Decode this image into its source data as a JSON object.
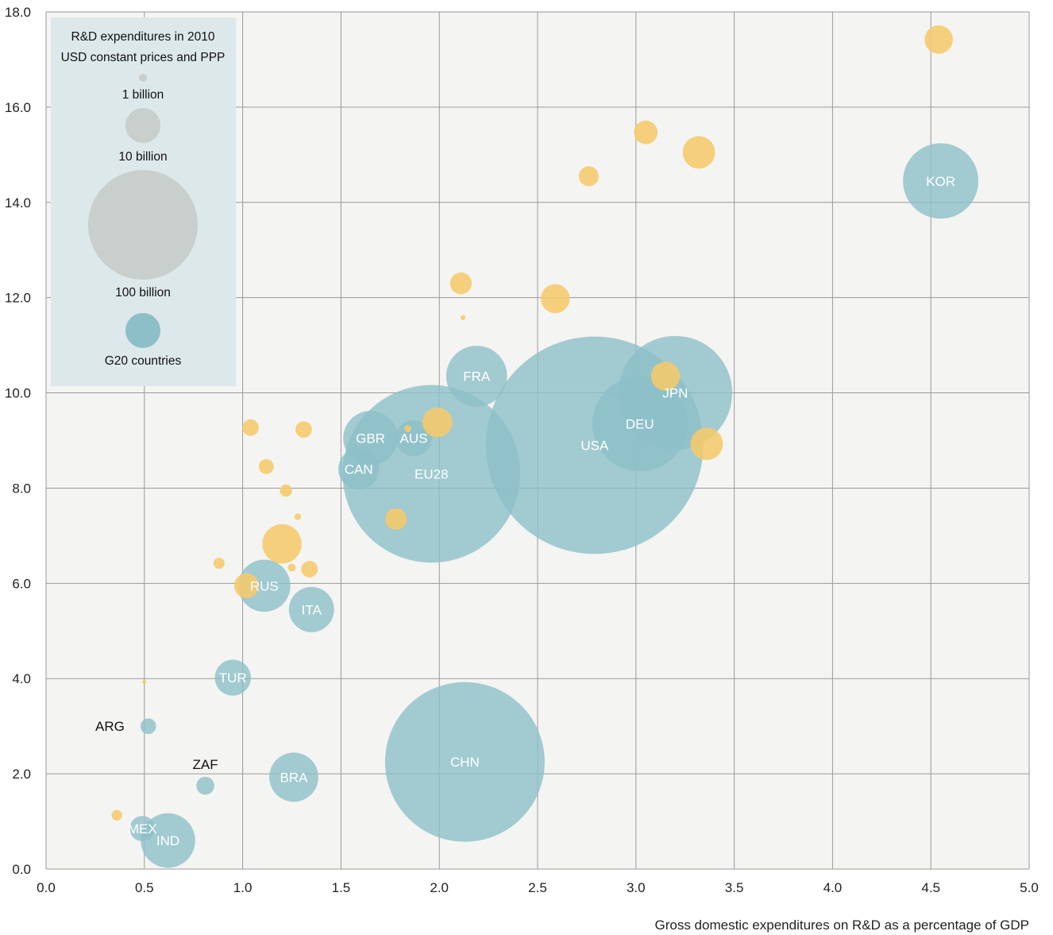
{
  "colors": {
    "plot_background": "#f4f4f2",
    "grid": "#9a9a9a",
    "g20": "#8dbfc8",
    "other": "#f5c96a",
    "legend_background": "#dde8ea",
    "legend_bubble": "#c8cfcd",
    "label_on_bubble": "#ffffff",
    "label_outside": "#111111"
  },
  "chart_data": {
    "type": "scatter",
    "subtype": "bubble",
    "xlabel": "Gross domestic expenditures on R&D as a percentage of GDP",
    "ylabel": "",
    "xlim": [
      0,
      5
    ],
    "ylim": [
      0,
      18
    ],
    "x_ticks": [
      "0.0",
      "0.5",
      "1.0",
      "1.5",
      "2.0",
      "2.5",
      "3.0",
      "3.5",
      "4.0",
      "4.5",
      "5.0"
    ],
    "y_ticks": [
      "0.0",
      "2.0",
      "4.0",
      "6.0",
      "8.0",
      "10.0",
      "12.0",
      "14.0",
      "16.0",
      "18.0"
    ],
    "grid": true,
    "legend": {
      "position": "top-left",
      "title_line1": "R&D expenditures in 2010",
      "title_line2": "USD constant prices and PPP",
      "size_entries": [
        {
          "label": "1 billion",
          "value": 1
        },
        {
          "label": "10 billion",
          "value": 10
        },
        {
          "label": "100 billion",
          "value": 100
        }
      ],
      "color_entry": {
        "label": "G20 countries"
      }
    },
    "series": [
      {
        "name": "G20 countries",
        "points": [
          {
            "label": "USA",
            "x": 2.79,
            "y": 8.9,
            "size": 382,
            "label_inside": true
          },
          {
            "label": "CHN",
            "x": 2.13,
            "y": 2.25,
            "size": 206,
            "label_inside": true
          },
          {
            "label": "EU28",
            "x": 1.96,
            "y": 8.3,
            "size": 255,
            "label_inside": true
          },
          {
            "label": "JPN",
            "x": 3.2,
            "y": 10.0,
            "size": 105,
            "label_inside": true
          },
          {
            "label": "DEU",
            "x": 3.02,
            "y": 9.35,
            "size": 73,
            "label_inside": true
          },
          {
            "label": "KOR",
            "x": 4.55,
            "y": 14.45,
            "size": 46,
            "label_inside": true
          },
          {
            "label": "FRA",
            "x": 2.19,
            "y": 10.35,
            "size": 30,
            "label_inside": true
          },
          {
            "label": "GBR",
            "x": 1.65,
            "y": 9.05,
            "size": 24,
            "label_inside": true
          },
          {
            "label": "RUS",
            "x": 1.11,
            "y": 5.95,
            "size": 22,
            "label_inside": true
          },
          {
            "label": "BRA",
            "x": 1.26,
            "y": 1.93,
            "size": 19.5,
            "label_inside": true
          },
          {
            "label": "IND",
            "x": 0.62,
            "y": 0.6,
            "size": 24,
            "label_inside": true
          },
          {
            "label": "ITA",
            "x": 1.35,
            "y": 5.45,
            "size": 16.5,
            "label_inside": true
          },
          {
            "label": "CAN",
            "x": 1.59,
            "y": 8.4,
            "size": 13.5,
            "label_inside": true
          },
          {
            "label": "AUS",
            "x": 1.87,
            "y": 9.05,
            "size": 10.5,
            "label_inside": true
          },
          {
            "label": "TUR",
            "x": 0.95,
            "y": 4.02,
            "size": 10.5,
            "label_inside": true
          },
          {
            "label": "MEX",
            "x": 0.49,
            "y": 0.85,
            "size": 5.2,
            "label_inside": true
          },
          {
            "label": "ZAF",
            "x": 0.81,
            "y": 1.75,
            "size": 2.6,
            "label_inside": false
          },
          {
            "label": "ARG",
            "x": 0.52,
            "y": 3.0,
            "size": 2.0,
            "label_inside": false
          }
        ]
      },
      {
        "name": "",
        "points": [
          {
            "x": 4.54,
            "y": 17.42,
            "size": 6.5
          },
          {
            "x": 3.05,
            "y": 15.47,
            "size": 4.5
          },
          {
            "x": 3.32,
            "y": 15.05,
            "size": 8.5
          },
          {
            "x": 2.76,
            "y": 14.55,
            "size": 3.2
          },
          {
            "x": 2.11,
            "y": 12.3,
            "size": 3.8
          },
          {
            "x": 2.59,
            "y": 11.98,
            "size": 6.8
          },
          {
            "x": 2.12,
            "y": 11.58,
            "size": 0.2
          },
          {
            "x": 3.15,
            "y": 10.35,
            "size": 6.8
          },
          {
            "x": 3.36,
            "y": 8.93,
            "size": 8.5
          },
          {
            "x": 1.99,
            "y": 9.38,
            "size": 7.2
          },
          {
            "x": 1.04,
            "y": 9.27,
            "size": 2.2
          },
          {
            "x": 1.31,
            "y": 9.23,
            "size": 2.2
          },
          {
            "x": 1.12,
            "y": 8.45,
            "size": 1.8
          },
          {
            "x": 1.22,
            "y": 7.95,
            "size": 1.2
          },
          {
            "x": 1.28,
            "y": 7.4,
            "size": 0.35
          },
          {
            "x": 1.78,
            "y": 7.35,
            "size": 3.8
          },
          {
            "x": 1.2,
            "y": 6.83,
            "size": 12.5
          },
          {
            "x": 0.88,
            "y": 6.42,
            "size": 1.0
          },
          {
            "x": 1.34,
            "y": 6.3,
            "size": 2.2
          },
          {
            "x": 1.25,
            "y": 6.33,
            "size": 0.5
          },
          {
            "x": 1.02,
            "y": 5.95,
            "size": 5.0
          },
          {
            "x": 0.36,
            "y": 1.13,
            "size": 0.9
          },
          {
            "x": 0.5,
            "y": 3.93,
            "size": 0.13
          },
          {
            "x": 1.84,
            "y": 9.25,
            "size": 0.4
          }
        ]
      }
    ]
  }
}
